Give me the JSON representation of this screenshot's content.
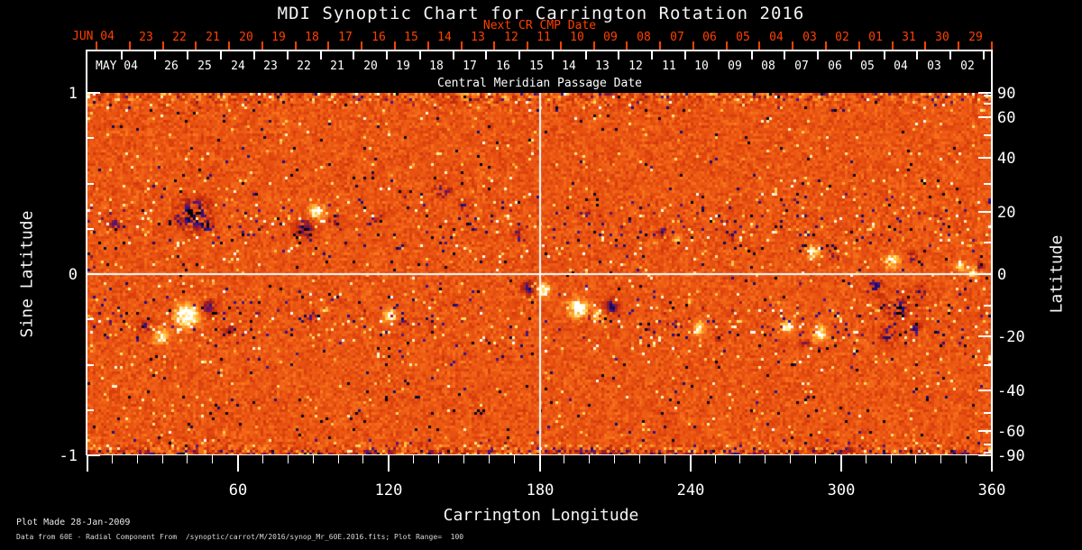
{
  "title": "MDI Synoptic Chart for Carrington Rotation 2016",
  "footer": {
    "line1": "Plot Made 28-Jan-2009",
    "line2": "Data from 60E - Radial Component From  /synoptic/carrot/M/2016/synop_Mr_60E.2016.fits; Plot Range=  100"
  },
  "colors": {
    "background": "#000000",
    "axis": "#ffffff",
    "date_axis_red": "#ff4000",
    "magnetogram_base_orange": "#eb5512",
    "negative_polarity": "#190f78",
    "positive_polarity": "#ffffff"
  },
  "chart_data": {
    "type": "heatmap",
    "title": "MDI Synoptic Chart for Carrington Rotation 2016",
    "xlabel": "Carrington Longitude",
    "ylabel_left": "Sine Latitude",
    "ylabel_right": "Latitude",
    "xlim": [
      0,
      360
    ],
    "ylim_sine": [
      -1,
      1
    ],
    "x_major_ticks": [
      60,
      120,
      180,
      240,
      300,
      360
    ],
    "x_minor_step": 10,
    "y_left_major_ticks": [
      1,
      0,
      -1
    ],
    "y_left_minor_step": 0.25,
    "y_right_major_ticks": [
      90,
      60,
      40,
      20,
      0,
      -20,
      -40,
      -60,
      -90
    ],
    "y_right_minor_step_deg": 10,
    "grid": "crosshair only",
    "crosshair": {
      "lon": 180,
      "sine_latitude": 0
    },
    "plot_range_gauss": 100,
    "top_axis": {
      "label": "Next CR CMP Date",
      "month_label": "JUN 04",
      "day_labels": [
        "23",
        "22",
        "21",
        "20",
        "19",
        "18",
        "17",
        "16",
        "15",
        "14",
        "13",
        "12",
        "11",
        "10",
        "09",
        "08",
        "07",
        "06",
        "05",
        "04",
        "03",
        "02",
        "01",
        "31",
        "30",
        "29"
      ],
      "first_tick_lon": 3.6,
      "days_per_rotation": 27.2753
    },
    "bottom_date_axis": {
      "label": "Central Meridian Passage Date",
      "month_label": "MAY 04",
      "day_labels": [
        "26",
        "25",
        "24",
        "23",
        "22",
        "21",
        "20",
        "19",
        "18",
        "17",
        "16",
        "15",
        "14",
        "13",
        "12",
        "11",
        "10",
        "09",
        "08",
        "07",
        "06",
        "05",
        "04",
        "03",
        "02"
      ],
      "first_tick_lon": 13.6
    },
    "colormap_stops": [
      [
        0.0,
        "#000000"
      ],
      [
        0.06,
        "#050528"
      ],
      [
        0.16,
        "#190f78"
      ],
      [
        0.24,
        "#46148c"
      ],
      [
        0.32,
        "#82193c"
      ],
      [
        0.4,
        "#af2314"
      ],
      [
        0.5,
        "#d2370c"
      ],
      [
        0.6,
        "#eb5512"
      ],
      [
        0.7,
        "#fa781e"
      ],
      [
        0.8,
        "#ffaf32"
      ],
      [
        0.88,
        "#ffe16e"
      ],
      [
        0.94,
        "#fff8c8"
      ],
      [
        1.0,
        "#ffffff"
      ]
    ],
    "active_regions": [
      {
        "lon": 10,
        "slat": 0.29,
        "r": 10,
        "pol": -1,
        "s": 0.5,
        "sp": 1
      },
      {
        "lon": 36,
        "slat": 0.3,
        "r": 8,
        "pol": -1,
        "s": 0.5,
        "sp": 1
      },
      {
        "lon": 42,
        "slat": 0.34,
        "r": 20,
        "pol": -1,
        "s": 0.9,
        "sp": 1
      },
      {
        "lon": 47,
        "slat": 0.27,
        "r": 10,
        "pol": -1,
        "s": 0.7,
        "sp": 1
      },
      {
        "lon": 86,
        "slat": 0.26,
        "r": 12,
        "pol": -1,
        "s": 0.9,
        "sp": 0
      },
      {
        "lon": 91,
        "slat": 0.35,
        "r": 10,
        "pol": 1,
        "s": 1.0,
        "sp": 0
      },
      {
        "lon": 97,
        "slat": 0.3,
        "r": 6,
        "pol": -1,
        "s": 0.6,
        "sp": 1
      },
      {
        "lon": 116,
        "slat": 0.32,
        "r": 6,
        "pol": -1,
        "s": 0.45,
        "sp": 1
      },
      {
        "lon": 141,
        "slat": 0.47,
        "r": 11,
        "pol": -1,
        "s": 0.6,
        "sp": 1
      },
      {
        "lon": 150,
        "slat": 0.39,
        "r": 8,
        "pol": -1,
        "s": 0.55,
        "sp": 1
      },
      {
        "lon": 166,
        "slat": 0.32,
        "r": 5,
        "pol": 1,
        "s": 0.5,
        "sp": 1
      },
      {
        "lon": 171,
        "slat": 0.24,
        "r": 6,
        "pol": -1,
        "s": 0.5,
        "sp": 1
      },
      {
        "lon": 197,
        "slat": 0.34,
        "r": 8,
        "pol": -1,
        "s": 0.55,
        "sp": 1
      },
      {
        "lon": 229,
        "slat": 0.24,
        "r": 8,
        "pol": -1,
        "s": 0.6,
        "sp": 1
      },
      {
        "lon": 234,
        "slat": 0.19,
        "r": 5,
        "pol": 1,
        "s": 0.6,
        "sp": 0
      },
      {
        "lon": 256,
        "slat": 0.21,
        "r": 5,
        "pol": -1,
        "s": 0.4,
        "sp": 1
      },
      {
        "lon": 264,
        "slat": 0.28,
        "r": 4,
        "pol": 1,
        "s": 0.4,
        "sp": 1
      },
      {
        "lon": 288,
        "slat": 0.13,
        "r": 9,
        "pol": 1,
        "s": 0.95,
        "sp": 0
      },
      {
        "lon": 297,
        "slat": 0.1,
        "r": 6,
        "pol": -1,
        "s": 0.5,
        "sp": 1
      },
      {
        "lon": 320,
        "slat": 0.08,
        "r": 10,
        "pol": 1,
        "s": 0.95,
        "sp": 0
      },
      {
        "lon": 328,
        "slat": 0.1,
        "r": 7,
        "pol": -1,
        "s": 0.6,
        "sp": 1
      },
      {
        "lon": 347,
        "slat": 0.05,
        "r": 7,
        "pol": 1,
        "s": 0.8,
        "sp": 0
      },
      {
        "lon": 355,
        "slat": 0.05,
        "r": 6,
        "pol": -1,
        "s": 0.5,
        "sp": 1
      },
      {
        "lon": 23,
        "slat": -0.28,
        "r": 9,
        "pol": -1,
        "s": 0.5,
        "sp": 1
      },
      {
        "lon": 29,
        "slat": -0.34,
        "r": 10,
        "pol": 1,
        "s": 1.0,
        "sp": 0
      },
      {
        "lon": 39,
        "slat": -0.22,
        "r": 16,
        "pol": 1,
        "s": 1.2,
        "sp": 0
      },
      {
        "lon": 48,
        "slat": -0.18,
        "r": 10,
        "pol": -1,
        "s": 0.85,
        "sp": 0
      },
      {
        "lon": 56,
        "slat": -0.3,
        "r": 8,
        "pol": -1,
        "s": 0.45,
        "sp": 1
      },
      {
        "lon": 89,
        "slat": -0.23,
        "r": 8,
        "pol": -1,
        "s": 0.6,
        "sp": 1
      },
      {
        "lon": 94,
        "slat": -0.19,
        "r": 5,
        "pol": 1,
        "s": 0.5,
        "sp": 1
      },
      {
        "lon": 120,
        "slat": -0.22,
        "r": 9,
        "pol": 1,
        "s": 0.9,
        "sp": 0
      },
      {
        "lon": 126,
        "slat": -0.26,
        "r": 5,
        "pol": -1,
        "s": 0.5,
        "sp": 1
      },
      {
        "lon": 175,
        "slat": -0.07,
        "r": 9,
        "pol": -1,
        "s": 0.9,
        "sp": 0
      },
      {
        "lon": 181,
        "slat": -0.08,
        "r": 9,
        "pol": 1,
        "s": 1.1,
        "sp": 0
      },
      {
        "lon": 195,
        "slat": -0.18,
        "r": 13,
        "pol": 1,
        "s": 1.2,
        "sp": 0
      },
      {
        "lon": 203,
        "slat": -0.22,
        "r": 7,
        "pol": 1,
        "s": 0.9,
        "sp": 0
      },
      {
        "lon": 208,
        "slat": -0.17,
        "r": 10,
        "pol": -1,
        "s": 0.95,
        "sp": 0
      },
      {
        "lon": 243,
        "slat": -0.29,
        "r": 9,
        "pol": 1,
        "s": 0.9,
        "sp": 0
      },
      {
        "lon": 251,
        "slat": -0.34,
        "r": 5,
        "pol": -1,
        "s": 0.5,
        "sp": 1
      },
      {
        "lon": 278,
        "slat": -0.28,
        "r": 9,
        "pol": 1,
        "s": 0.9,
        "sp": 0
      },
      {
        "lon": 285,
        "slat": -0.37,
        "r": 6,
        "pol": -1,
        "s": 0.5,
        "sp": 1
      },
      {
        "lon": 291,
        "slat": -0.32,
        "r": 10,
        "pol": 1,
        "s": 0.95,
        "sp": 0
      },
      {
        "lon": 313,
        "slat": -0.06,
        "r": 11,
        "pol": -1,
        "s": 0.7,
        "sp": 1
      },
      {
        "lon": 318,
        "slat": -0.33,
        "r": 11,
        "pol": -1,
        "s": 0.7,
        "sp": 1
      },
      {
        "lon": 322,
        "slat": -0.18,
        "r": 14,
        "pol": -1,
        "s": 0.75,
        "sp": 1
      },
      {
        "lon": 329,
        "slat": -0.3,
        "r": 9,
        "pol": -1,
        "s": 0.65,
        "sp": 1
      },
      {
        "lon": 331,
        "slat": -0.1,
        "r": 9,
        "pol": -1,
        "s": 0.65,
        "sp": 1
      },
      {
        "lon": 352,
        "slat": 0.02,
        "r": 7,
        "pol": 1,
        "s": 0.8,
        "sp": 0
      }
    ]
  }
}
